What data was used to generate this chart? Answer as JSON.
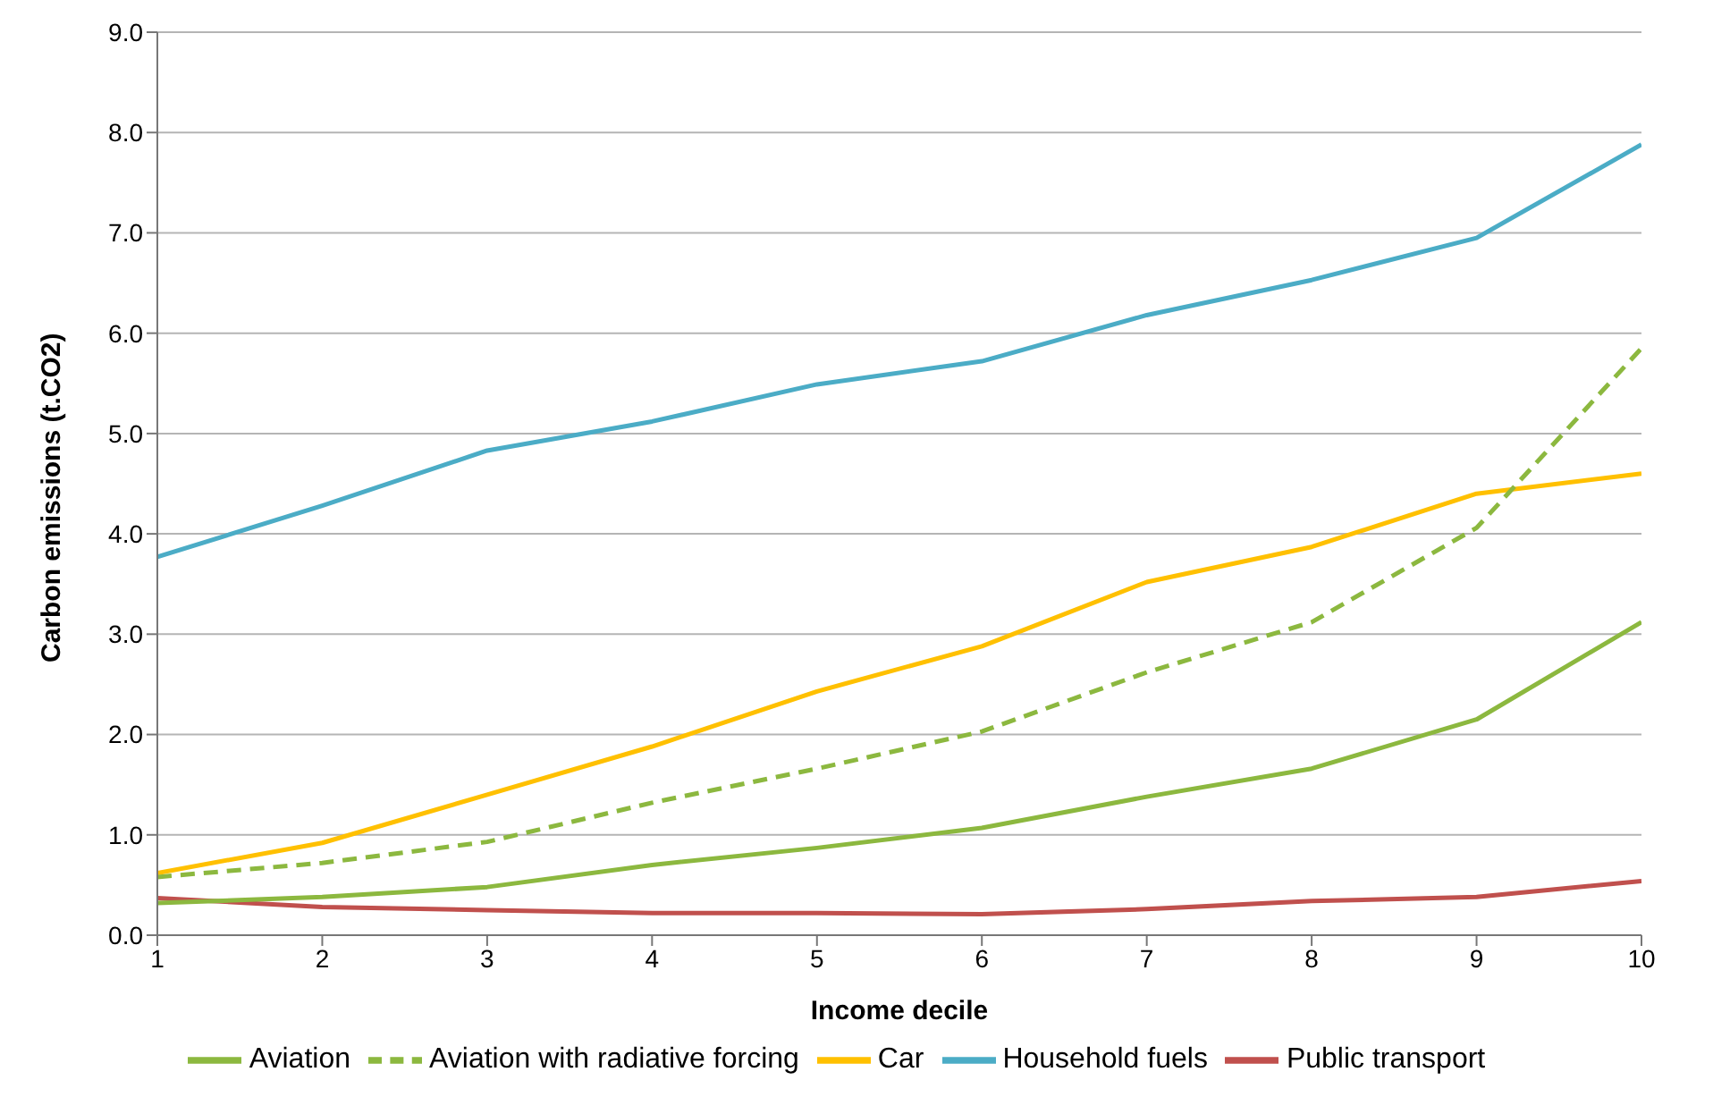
{
  "chart_data": {
    "type": "line",
    "xlabel": "Income decile",
    "ylabel": "Carbon emissions (t.CO2)",
    "x": [
      1,
      2,
      3,
      4,
      5,
      6,
      7,
      8,
      9,
      10
    ],
    "series": [
      {
        "name": "Household fuels",
        "color": "#4bacc6",
        "values": [
          3.77,
          4.28,
          4.83,
          5.12,
          5.49,
          5.72,
          6.18,
          6.53,
          6.95,
          7.88
        ]
      },
      {
        "name": "Car",
        "color": "#ffc000",
        "values": [
          0.62,
          0.92,
          1.4,
          1.88,
          2.43,
          2.88,
          3.52,
          3.87,
          4.4,
          4.6
        ]
      },
      {
        "name": "Public transport",
        "color": "#c0504d",
        "values": [
          0.37,
          0.28,
          0.25,
          0.22,
          0.22,
          0.21,
          0.26,
          0.34,
          0.38,
          0.54
        ]
      },
      {
        "name": "Aviation",
        "color": "#8cb83f",
        "values": [
          0.32,
          0.38,
          0.48,
          0.7,
          0.87,
          1.07,
          1.38,
          1.66,
          2.15,
          3.12
        ]
      },
      {
        "name": "Aviation with radiative forcing",
        "color": "#8cb83f",
        "line_style": "dashed",
        "values": [
          0.58,
          0.72,
          0.93,
          1.32,
          1.66,
          2.03,
          2.62,
          3.12,
          4.06,
          5.85
        ]
      }
    ],
    "xlim": [
      1,
      10
    ],
    "xticks": [
      1,
      2,
      3,
      4,
      5,
      6,
      7,
      8,
      9,
      10
    ],
    "ylim": [
      0,
      9
    ],
    "yticks": [
      {
        "value": 0,
        "label": "0.0"
      },
      {
        "value": 1,
        "label": "1.0"
      },
      {
        "value": 2,
        "label": "2.0"
      },
      {
        "value": 3,
        "label": "3.0"
      },
      {
        "value": 4,
        "label": "4.0"
      },
      {
        "value": 5,
        "label": "5.0"
      },
      {
        "value": 6,
        "label": "6.0"
      },
      {
        "value": 7,
        "label": "7.0"
      },
      {
        "value": 8,
        "label": "8.0"
      },
      {
        "value": 9,
        "label": "9.0"
      }
    ],
    "grid": "y",
    "legend": "bottom",
    "marker": "none",
    "line_style": "solid"
  }
}
